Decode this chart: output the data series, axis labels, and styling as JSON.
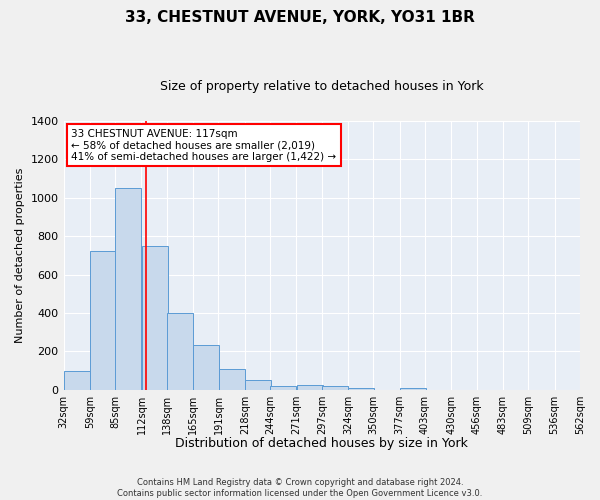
{
  "title": "33, CHESTNUT AVENUE, YORK, YO31 1BR",
  "subtitle": "Size of property relative to detached houses in York",
  "xlabel": "Distribution of detached houses by size in York",
  "ylabel": "Number of detached properties",
  "annotation_line1": "33 CHESTNUT AVENUE: 117sqm",
  "annotation_line2": "← 58% of detached houses are smaller (2,019)",
  "annotation_line3": "41% of semi-detached houses are larger (1,422) →",
  "property_size_sqm": 117,
  "bin_edges": [
    32,
    59,
    85,
    112,
    138,
    165,
    191,
    218,
    244,
    271,
    297,
    324,
    350,
    377,
    403,
    430,
    456,
    483,
    509,
    536,
    562
  ],
  "bin_labels": [
    "32sqm",
    "59sqm",
    "85sqm",
    "112sqm",
    "138sqm",
    "165sqm",
    "191sqm",
    "218sqm",
    "244sqm",
    "271sqm",
    "297sqm",
    "324sqm",
    "350sqm",
    "377sqm",
    "403sqm",
    "430sqm",
    "456sqm",
    "483sqm",
    "509sqm",
    "536sqm",
    "562sqm"
  ],
  "bar_heights": [
    100,
    720,
    1050,
    750,
    400,
    235,
    110,
    50,
    20,
    28,
    20,
    10,
    0,
    10,
    0,
    0,
    0,
    0,
    0,
    0
  ],
  "bar_color": "#c8d9ec",
  "bar_edge_color": "#5b9bd5",
  "vline_color": "red",
  "vline_x": 117,
  "ylim": [
    0,
    1400
  ],
  "yticks": [
    0,
    200,
    400,
    600,
    800,
    1000,
    1200,
    1400
  ],
  "background_color": "#e8eef6",
  "grid_color": "#ffffff",
  "fig_background": "#f0f0f0",
  "annotation_box_color": "#ffffff",
  "annotation_box_edge": "red",
  "footer_line1": "Contains HM Land Registry data © Crown copyright and database right 2024.",
  "footer_line2": "Contains public sector information licensed under the Open Government Licence v3.0."
}
